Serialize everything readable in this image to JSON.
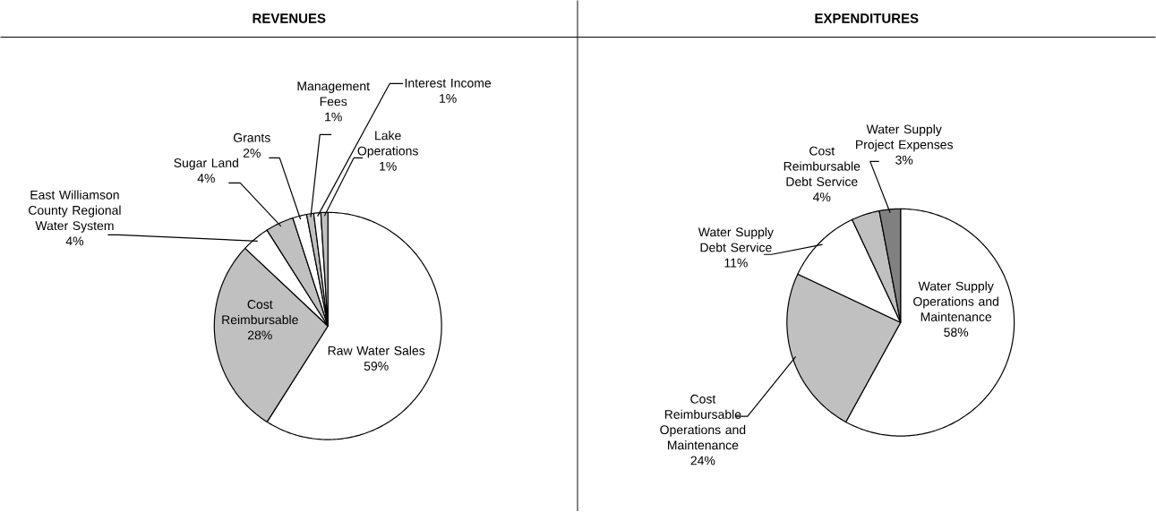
{
  "chart_data": [
    {
      "type": "pie",
      "title": "REVENUES",
      "categories": [
        "Raw Water Sales",
        "Cost Reimbursable",
        "East Williamson County Regional Water System",
        "Sugar Land",
        "Grants",
        "Management Fees",
        "Interest Income",
        "Lake Operations"
      ],
      "values": [
        59,
        28,
        4,
        4,
        2,
        1,
        1,
        1
      ],
      "value_labels": [
        "59%",
        "28%",
        "4%",
        "4%",
        "2%",
        "1%",
        "1%",
        "1%"
      ],
      "colors": [
        "#ffffff",
        "#c0c0c0",
        "#ffffff",
        "#c0c0c0",
        "#ffffff",
        "#c0c0c0",
        "#ffffff",
        "#c0c0c0"
      ]
    },
    {
      "type": "pie",
      "title": "EXPENDITURES",
      "categories": [
        "Water Supply Operations and Maintenance",
        "Cost Reimbursable Operations and Maintenance",
        "Water Supply Debt Service",
        "Cost Reimbursable Debt Service",
        "Water Supply Project Expenses"
      ],
      "values": [
        58,
        24,
        11,
        4,
        3
      ],
      "value_labels": [
        "58%",
        "24%",
        "11%",
        "4%",
        "3%"
      ],
      "colors": [
        "#ffffff",
        "#c0c0c0",
        "#ffffff",
        "#c0c0c0",
        "#808080"
      ]
    }
  ]
}
